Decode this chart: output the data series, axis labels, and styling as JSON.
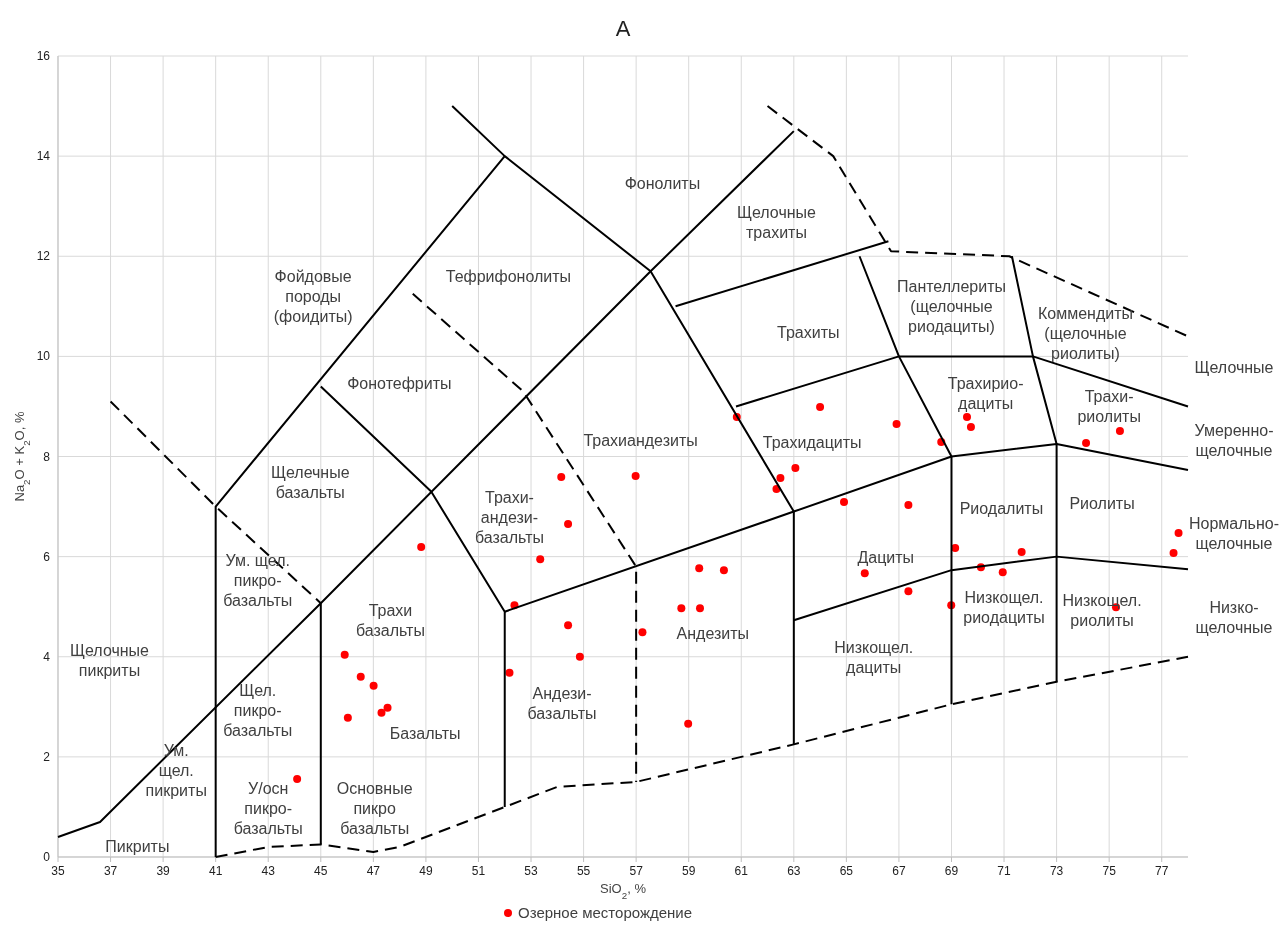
{
  "chart_data": {
    "type": "scatter",
    "title": "А",
    "xlabel": "SiO$_{2}$, %",
    "ylabel": "Na$_{2}$O + K$_{2}$O, %",
    "xlim": [
      35,
      78
    ],
    "ylim": [
      0,
      16
    ],
    "xticks": [
      35,
      37,
      39,
      41,
      43,
      45,
      47,
      49,
      51,
      53,
      55,
      57,
      59,
      61,
      63,
      65,
      67,
      69,
      71,
      73,
      75,
      77
    ],
    "yticks": [
      0,
      2,
      4,
      6,
      8,
      10,
      12,
      14,
      16
    ],
    "grid": true,
    "legend": "bottom",
    "series": [
      {
        "name": "Озерное месторождение",
        "color": "#ff0000",
        "marker": "circle",
        "x": [
          48.82,
          45.91,
          46.52,
          47.01,
          46.03,
          47.31,
          47.54,
          44.1,
          52.37,
          52.18,
          54.15,
          54.41,
          53.35,
          54.41,
          54.86,
          56.98,
          57.24,
          58.72,
          59.43,
          59.4,
          60.34,
          58.98,
          60.83,
          64.0,
          63.06,
          62.49,
          62.34,
          64.91,
          65.7,
          66.91,
          67.36,
          67.36,
          68.61,
          69.59,
          69.74,
          69.14,
          68.99,
          70.12,
          70.95,
          71.67,
          74.12,
          75.41,
          75.26,
          77.64,
          77.45
        ],
        "values": [
          6.19,
          4.04,
          3.6,
          3.42,
          2.78,
          2.88,
          2.98,
          1.56,
          5.03,
          3.68,
          7.59,
          6.65,
          5.95,
          4.63,
          4.0,
          7.61,
          4.49,
          4.97,
          4.97,
          5.77,
          5.73,
          2.66,
          8.79,
          8.99,
          7.77,
          7.57,
          7.35,
          7.09,
          5.67,
          8.65,
          7.03,
          5.31,
          8.29,
          8.79,
          8.59,
          6.17,
          5.03,
          5.79,
          5.69,
          6.09,
          8.27,
          8.51,
          4.99,
          6.47,
          6.07
        ]
      },
      {
        "type": "line",
        "color": "#000000",
        "line_style": "solid",
        "x": [
          35,
          36.6,
          45,
          57.55,
          63
        ],
        "values": [
          0.4,
          0.7,
          5.07,
          11.7,
          14.5
        ]
      },
      {
        "type": "line",
        "color": "#000000",
        "line_style": "solid",
        "x": [
          41,
          41,
          52
        ],
        "values": [
          0,
          7,
          14
        ]
      },
      {
        "type": "line",
        "color": "#000000",
        "line_style": "solid",
        "x": [
          45,
          45
        ],
        "values": [
          0.25,
          5.07
        ]
      },
      {
        "type": "line",
        "color": "#000000",
        "line_style": "solid",
        "x": [
          45,
          49.2,
          52,
          52
        ],
        "values": [
          9.4,
          7.3,
          4.9,
          1.0
        ]
      },
      {
        "type": "line",
        "color": "#000000",
        "line_style": "solid",
        "x": [
          50,
          52,
          57.55,
          63,
          63
        ],
        "values": [
          15,
          14,
          11.7,
          6.9,
          2.25
        ]
      },
      {
        "type": "line",
        "color": "#000000",
        "line_style": "solid",
        "x": [
          52,
          63,
          69,
          73,
          78
        ],
        "values": [
          4.9,
          6.9,
          8.0,
          8.25,
          7.73
        ]
      },
      {
        "type": "line",
        "color": "#000000",
        "line_style": "solid",
        "x": [
          63,
          69,
          73,
          78
        ],
        "values": [
          4.73,
          5.73,
          6.0,
          5.75
        ]
      },
      {
        "type": "line",
        "color": "#000000",
        "line_style": "solid",
        "x": [
          69,
          69,
          67,
          65.5
        ],
        "values": [
          3.05,
          8.0,
          10.0,
          12.0
        ]
      },
      {
        "type": "line",
        "color": "#000000",
        "line_style": "solid",
        "x": [
          73,
          73,
          72.1,
          71.3
        ],
        "values": [
          3.5,
          8.25,
          10.0,
          12.0
        ]
      },
      {
        "type": "line",
        "color": "#000000",
        "line_style": "solid",
        "x": [
          60.8,
          67,
          72.1,
          78
        ],
        "values": [
          9.0,
          10.0,
          10.0,
          9.0
        ]
      },
      {
        "type": "line",
        "color": "#000000",
        "line_style": "solid",
        "x": [
          58.5,
          66.6
        ],
        "values": [
          11.0,
          12.3
        ]
      },
      {
        "type": "line",
        "color": "#000000",
        "line_style": "dashed",
        "x": [
          37,
          41,
          45
        ],
        "values": [
          9.1,
          7.0,
          5.07
        ]
      },
      {
        "type": "line",
        "color": "#000000",
        "line_style": "dashed",
        "x": [
          48.5,
          52.7,
          57,
          57
        ],
        "values": [
          11.25,
          9.3,
          5.8,
          1.5
        ]
      },
      {
        "type": "line",
        "color": "#000000",
        "line_style": "dashed",
        "x": [
          41,
          43,
          45,
          47,
          48,
          52,
          54,
          57,
          63,
          69,
          73,
          78
        ],
        "values": [
          0,
          0.2,
          0.25,
          0.1,
          0.2,
          1.0,
          1.4,
          1.5,
          2.25,
          3.05,
          3.5,
          4.0
        ]
      },
      {
        "type": "line",
        "color": "#000000",
        "line_style": "dashed",
        "x": [
          62,
          64.5,
          66.7,
          71.2,
          78
        ],
        "values": [
          15,
          14,
          12.1,
          12.0,
          10.4
        ]
      }
    ],
    "annotations": [
      "Фонолиты",
      "Щелочные\nтрахиты",
      "Фойдовые\nпороды\n(фоидиты)",
      "Тефрифонолиты",
      "Пантеллериты\n(щелочные\nриодациты)",
      "Коммендиты\n(щелочные\nриолиты)",
      "Трахиты",
      "Фонотефриты",
      "Трахирио-\nдациты",
      "Трахи-\nриолиты",
      "Щелочные",
      "Умеренно-\nщелочные",
      "Нормально-\nщелочные",
      "Низко-\nщелочные",
      "Щелечные\nбазальты",
      "Трахиандезиты",
      "Трахидациты",
      "Трахи-\nандези-\nбазальты",
      "Риодалиты",
      "Риолиты",
      "Дациты",
      "Ум. щел.\nпикро-\nбазальты",
      "Трахи\nбазальты",
      "Андезиты",
      "Низкощел.\nриодациты",
      "Низкощел.\nриолиты",
      "Щелочные\nпикриты",
      "Щел.\nпикро-\nбазальты",
      "Низкощел.\nдациты",
      "Андези-\nбазальты",
      "Базальты",
      "Ум.\nщел.\nпикриты",
      "У/осн\nпикро-\nбазальты",
      "Основные\nпикро\nбазальты",
      "Пикриты"
    ]
  }
}
